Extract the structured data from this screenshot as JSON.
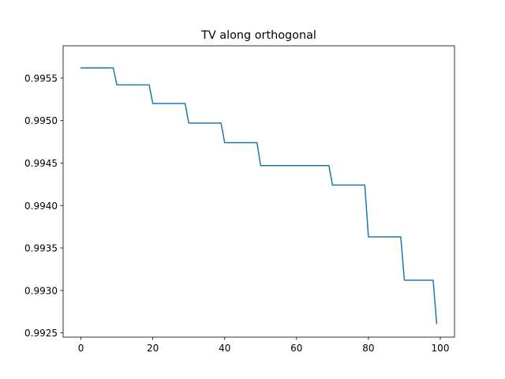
{
  "chart_data": {
    "type": "line",
    "title": "TV along orthogonal",
    "xlabel": "",
    "ylabel": "",
    "xlim": [
      -4.95,
      103.95
    ],
    "ylim": [
      0.99245,
      0.99588
    ],
    "grid": false,
    "legend": "none",
    "x_ticks": [
      0,
      20,
      40,
      60,
      80,
      100
    ],
    "x_tick_labels": [
      "0",
      "20",
      "40",
      "60",
      "80",
      "100"
    ],
    "y_ticks": [
      0.9925,
      0.993,
      0.9935,
      0.994,
      0.9945,
      0.995,
      0.9955
    ],
    "y_tick_labels": [
      "0.9925",
      "0.9930",
      "0.9935",
      "0.9940",
      "0.9945",
      "0.9950",
      "0.9955"
    ],
    "series": [
      {
        "color": "#1f77b4",
        "x": [
          0,
          9,
          10,
          19,
          20,
          29,
          30,
          39,
          40,
          49,
          50,
          69,
          70,
          79,
          80,
          89,
          90,
          98,
          99
        ],
        "y": [
          0.99562,
          0.99562,
          0.99542,
          0.99542,
          0.9952,
          0.9952,
          0.99497,
          0.99497,
          0.99474,
          0.99474,
          0.99447,
          0.99447,
          0.99424,
          0.99424,
          0.99363,
          0.99363,
          0.99312,
          0.99312,
          0.99261
        ]
      }
    ]
  }
}
